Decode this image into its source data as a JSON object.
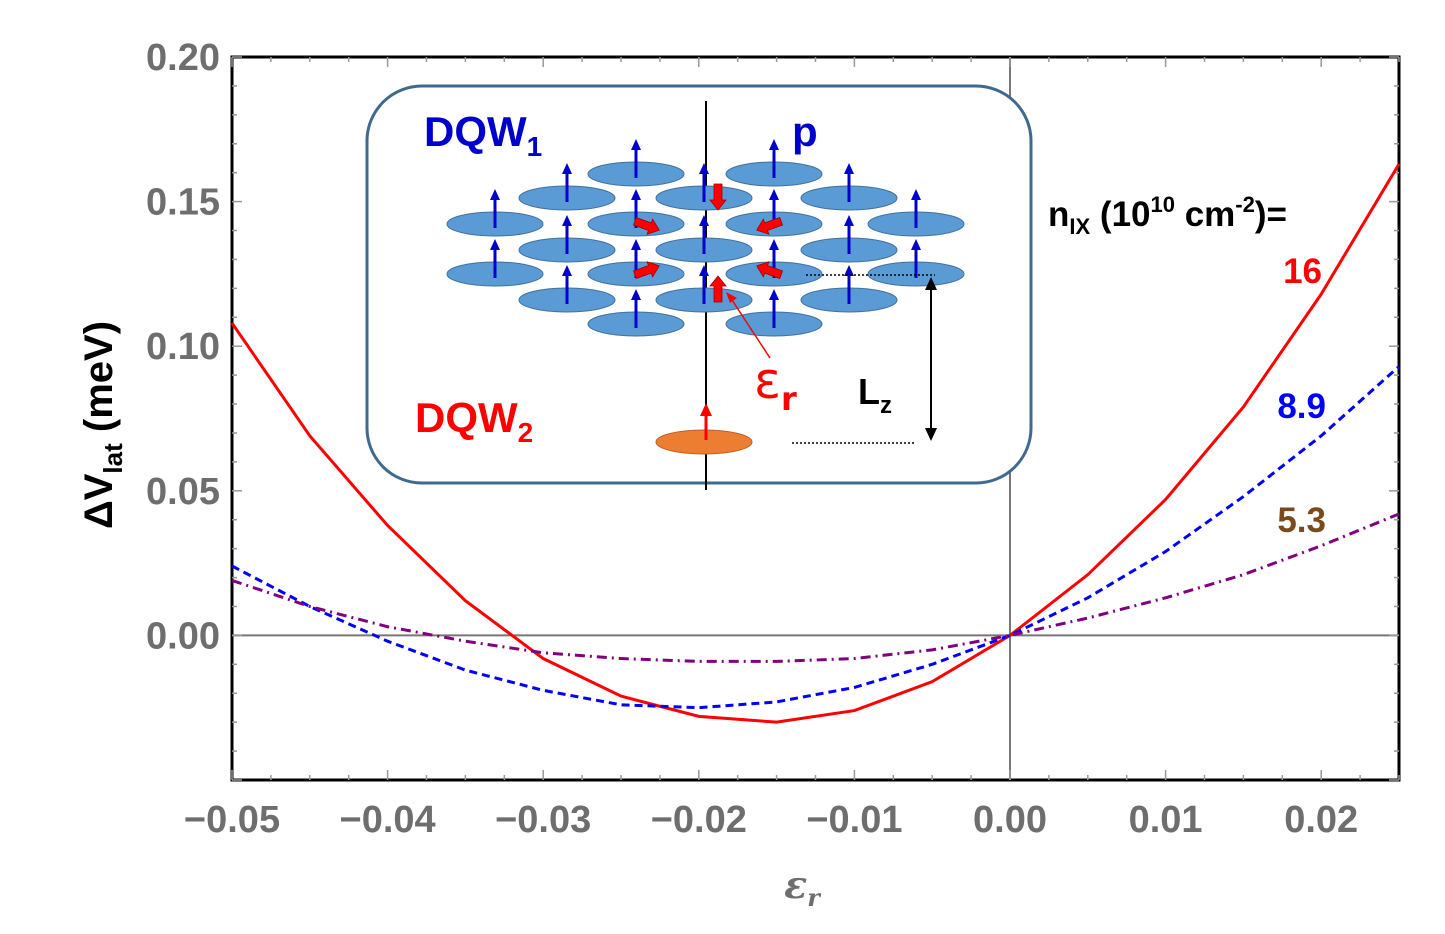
{
  "chart_data": {
    "type": "line",
    "title": "",
    "xlabel": "ε",
    "xlabel_sub": "r",
    "ylabel_prefix": "ΔV",
    "ylabel_sub": "lat",
    "ylabel_suffix": " (meV)",
    "xlim": [
      -0.05,
      0.025
    ],
    "ylim": [
      -0.05,
      0.2
    ],
    "xticks": [
      -0.05,
      -0.04,
      -0.03,
      -0.02,
      -0.01,
      0.0,
      0.01,
      0.02
    ],
    "xtick_labels": [
      "−0.05",
      "−0.04",
      "−0.03",
      "−0.02",
      "−0.01",
      "0.00",
      "0.01",
      "0.02"
    ],
    "yticks": [
      0.0,
      0.05,
      0.1,
      0.15,
      0.2
    ],
    "ytick_labels": [
      "0.00",
      "0.05",
      "0.10",
      "0.15",
      "0.20"
    ],
    "legend_title_n": "n",
    "legend_title_sub": "IX",
    "legend_title_rest": " (10",
    "legend_title_exp1": "10",
    "legend_title_cm": " cm",
    "legend_title_exp2": "-2",
    "legend_title_end": ")=",
    "series": [
      {
        "name": "16",
        "color": "#ff0000",
        "style": "solid",
        "x": [
          -0.05,
          -0.045,
          -0.04,
          -0.035,
          -0.03,
          -0.025,
          -0.02,
          -0.015,
          -0.01,
          -0.005,
          0.0,
          0.005,
          0.01,
          0.015,
          0.02,
          0.025
        ],
        "y": [
          0.108,
          0.069,
          0.038,
          0.012,
          -0.008,
          -0.021,
          -0.028,
          -0.03,
          -0.026,
          -0.016,
          0.0,
          0.021,
          0.047,
          0.079,
          0.118,
          0.163
        ]
      },
      {
        "name": "8.9",
        "color": "#0000ff",
        "style": "dashed",
        "x": [
          -0.05,
          -0.045,
          -0.04,
          -0.035,
          -0.03,
          -0.025,
          -0.02,
          -0.015,
          -0.01,
          -0.005,
          0.0,
          0.005,
          0.01,
          0.015,
          0.02,
          0.025
        ],
        "y": [
          0.024,
          0.01,
          -0.002,
          -0.012,
          -0.019,
          -0.024,
          -0.025,
          -0.023,
          -0.018,
          -0.01,
          0.0,
          0.013,
          0.029,
          0.048,
          0.069,
          0.093
        ]
      },
      {
        "name": "5.3",
        "color": "#800080",
        "style": "dashdot",
        "x": [
          -0.05,
          -0.045,
          -0.04,
          -0.035,
          -0.03,
          -0.025,
          -0.02,
          -0.015,
          -0.01,
          -0.005,
          0.0,
          0.005,
          0.01,
          0.015,
          0.02,
          0.025
        ],
        "y": [
          0.019,
          0.01,
          0.003,
          -0.002,
          -0.006,
          -0.008,
          -0.009,
          -0.009,
          -0.008,
          -0.005,
          0.0,
          0.006,
          0.013,
          0.021,
          0.031,
          0.042
        ]
      }
    ],
    "series_label_colors": [
      "#ff0000",
      "#0000ff",
      "#7b4a1c"
    ],
    "inset": {
      "dqw1_main": "DQW",
      "dqw1_sub": "1",
      "dqw2_main": "DQW",
      "dqw2_sub": "2",
      "p_label": "p",
      "er_main": "ε",
      "er_sub": "r",
      "lz_main": "L",
      "lz_sub": "z"
    }
  }
}
